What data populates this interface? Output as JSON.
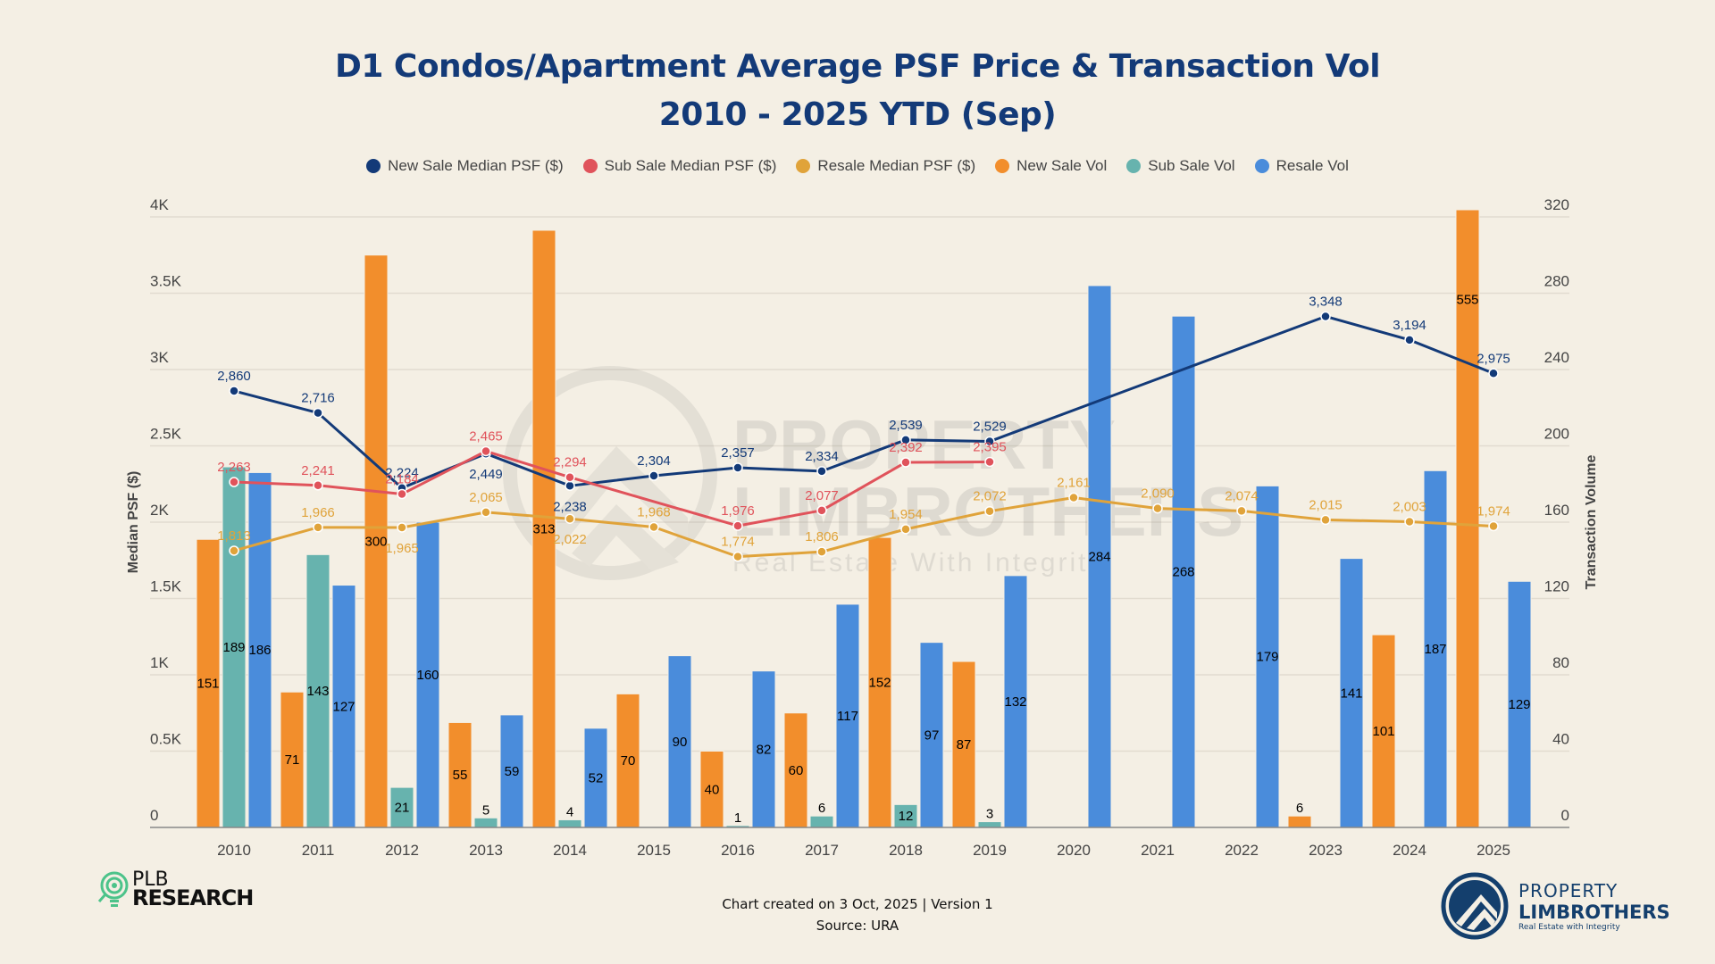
{
  "chart_data": {
    "type": "bar",
    "title": "D1 Condos/Apartment Average PSF Price & Transaction Vol",
    "subtitle": "2010 - 2025 YTD (Sep)",
    "categories": [
      "2010",
      "2011",
      "2012",
      "2013",
      "2014",
      "2015",
      "2016",
      "2017",
      "2018",
      "2019",
      "2020",
      "2021",
      "2022",
      "2023",
      "2024",
      "2025"
    ],
    "y_left": {
      "label": "Median PSF ($)",
      "range": [
        0,
        4000
      ],
      "ticks": [
        "0",
        "0.5K",
        "1K",
        "1.5K",
        "2K",
        "2.5K",
        "3K",
        "3.5K",
        "4K"
      ]
    },
    "y_right": {
      "label": "Transaction Volume",
      "range": [
        0,
        320
      ],
      "ticks": [
        "0",
        "40",
        "80",
        "120",
        "160",
        "200",
        "240",
        "280",
        "320"
      ]
    },
    "grid": true,
    "legend_position": "top",
    "bar_series": [
      {
        "name": "New Sale Vol",
        "color": "#f28e2c",
        "values": [
          151,
          71,
          300,
          55,
          313,
          70,
          40,
          60,
          152,
          87,
          null,
          null,
          null,
          6,
          101,
          555
        ]
      },
      {
        "name": "Sub Sale Vol",
        "color": "#67b3ae",
        "values": [
          189,
          143,
          21,
          5,
          4,
          null,
          1,
          6,
          12,
          3,
          null,
          null,
          null,
          null,
          null,
          null
        ]
      },
      {
        "name": "Resale Vol",
        "color": "#4a8cdb",
        "values": [
          186,
          127,
          160,
          59,
          52,
          90,
          82,
          117,
          97,
          132,
          284,
          268,
          179,
          141,
          187,
          129
        ]
      }
    ],
    "line_series": [
      {
        "name": "New Sale Median PSF ($)",
        "color": "#133a78",
        "values": [
          2860,
          2716,
          2224,
          2449,
          2238,
          2304,
          2357,
          2334,
          2539,
          2529,
          null,
          null,
          null,
          3348,
          3194,
          2975
        ]
      },
      {
        "name": "Sub Sale Median PSF ($)",
        "color": "#e0535b",
        "values": [
          2263,
          2241,
          2184,
          2465,
          2294,
          null,
          1976,
          2077,
          2392,
          2395,
          null,
          null,
          null,
          null,
          null,
          null
        ]
      },
      {
        "name": "Resale Median PSF ($)",
        "color": "#e0a33a",
        "values": [
          1813,
          1966,
          1965,
          2065,
          2022,
          1968,
          1774,
          1806,
          1954,
          2072,
          2161,
          2090,
          2074,
          2015,
          2003,
          1974
        ]
      }
    ]
  },
  "legend": [
    {
      "label": "New Sale Median PSF ($)",
      "color": "#133a78"
    },
    {
      "label": "Sub Sale Median PSF ($)",
      "color": "#e0535b"
    },
    {
      "label": "Resale Median PSF ($)",
      "color": "#e0a33a"
    },
    {
      "label": "New Sale Vol",
      "color": "#f28e2c"
    },
    {
      "label": "Sub Sale Vol",
      "color": "#67b3ae"
    },
    {
      "label": "Resale Vol",
      "color": "#4a8cdb"
    }
  ],
  "footer": {
    "created": "Chart created on 3 Oct, 2025 | Version 1",
    "source": "Source: URA"
  },
  "branding": {
    "left_logo_line1": "PLB",
    "left_logo_line2": "RESEARCH",
    "right_logo_line1": "PROPERTY",
    "right_logo_line2": "LIMBROTHERS",
    "right_logo_tagline": "Real Estate with Integrity",
    "watermark_line1": "PROPERTY",
    "watermark_line2": "LIMBROTHERS",
    "watermark_tagline": "Real Estate With Integrity"
  }
}
